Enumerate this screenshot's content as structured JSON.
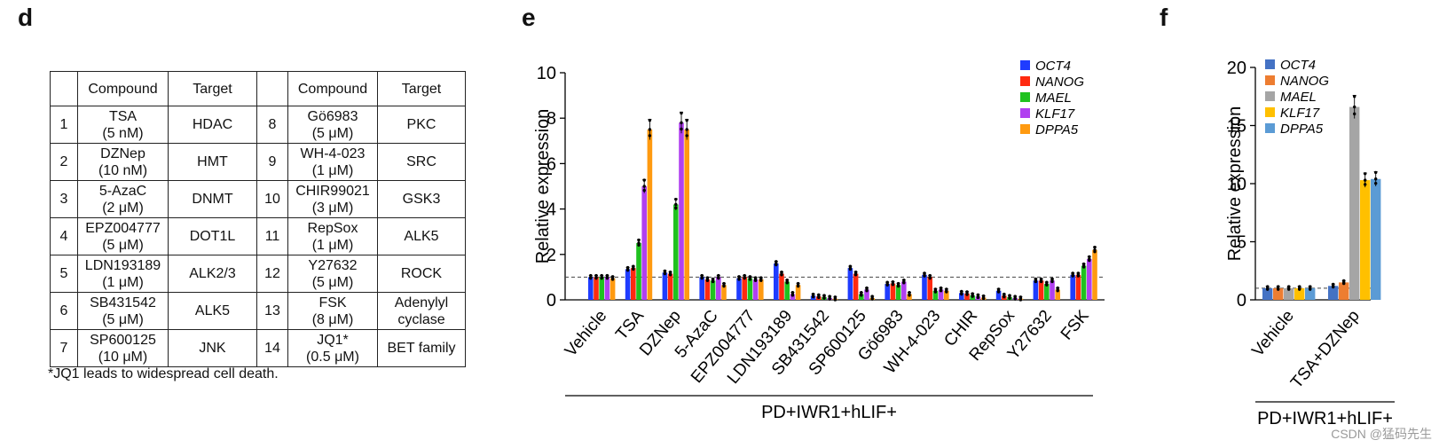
{
  "panels": {
    "d": "d",
    "e": "e",
    "f": "f"
  },
  "table": {
    "headers": [
      "",
      "Compound",
      "Target",
      "",
      "Compound",
      "Target"
    ],
    "rows": [
      {
        "n1": "1",
        "c1": [
          "TSA",
          "(5 nM)"
        ],
        "t1": "HDAC",
        "n2": "8",
        "c2": [
          "Gö6983",
          "(5 μM)"
        ],
        "t2": [
          "PKC"
        ]
      },
      {
        "n1": "2",
        "c1": [
          "DZNep",
          "(10 nM)"
        ],
        "t1": "HMT",
        "n2": "9",
        "c2": [
          "WH-4-023",
          "(1 μM)"
        ],
        "t2": [
          "SRC"
        ]
      },
      {
        "n1": "3",
        "c1": [
          "5-AzaC",
          "(2 μM)"
        ],
        "t1": "DNMT",
        "n2": "10",
        "c2": [
          "CHIR99021",
          "(3 μM)"
        ],
        "t2": [
          "GSK3"
        ]
      },
      {
        "n1": "4",
        "c1": [
          "EPZ004777",
          "(5 μM)"
        ],
        "t1": "DOT1L",
        "n2": "11",
        "c2": [
          "RepSox",
          "(1 μM)"
        ],
        "t2": [
          "ALK5"
        ]
      },
      {
        "n1": "5",
        "c1": [
          "LDN193189",
          "(1 μM)"
        ],
        "t1": "ALK2/3",
        "n2": "12",
        "c2": [
          "Y27632",
          "(5 μM)"
        ],
        "t2": [
          "ROCK"
        ]
      },
      {
        "n1": "6",
        "c1": [
          "SB431542",
          "(5 μM)"
        ],
        "t1": "ALK5",
        "n2": "13",
        "c2": [
          "FSK",
          "(8 μM)"
        ],
        "t2": [
          "Adenylyl",
          "cyclase"
        ]
      },
      {
        "n1": "7",
        "c1": [
          "SP600125",
          "(10 μM)"
        ],
        "t1": "JNK",
        "n2": "14",
        "c2": [
          "JQ1*",
          "(0.5 μM)"
        ],
        "t2": [
          "BET family"
        ]
      }
    ],
    "note": "*JQ1 leads to widespread cell death."
  },
  "chart_data": [
    {
      "panel": "e",
      "type": "bar",
      "ylabel": "Relative expression",
      "xlabel": "",
      "group_label": "PD+IWR1+hLIF+",
      "ylim": [
        0,
        10
      ],
      "yticks": [
        0,
        2,
        4,
        6,
        8,
        10
      ],
      "reference_line": 1,
      "legend_position": "top-right",
      "categories": [
        "Vehicle",
        "TSA",
        "DZNep",
        "5-AzaC",
        "EPZ004777",
        "LDN193189",
        "SB431542",
        "SP600125",
        "Gö6983",
        "WH-4-023",
        "CHIR",
        "RepSox",
        "Y27632",
        "FSK"
      ],
      "series": [
        {
          "name": "OCT4",
          "color": "#1f3cff",
          "values": [
            1.0,
            1.35,
            1.2,
            1.0,
            0.95,
            1.6,
            0.18,
            1.4,
            0.7,
            1.1,
            0.3,
            0.4,
            0.85,
            1.1
          ]
        },
        {
          "name": "NANOG",
          "color": "#ff2a10",
          "values": [
            1.0,
            1.4,
            1.15,
            0.9,
            1.0,
            1.15,
            0.15,
            1.15,
            0.72,
            1.0,
            0.28,
            0.18,
            0.85,
            1.1
          ]
        },
        {
          "name": "MAEL",
          "color": "#1fc21f",
          "values": [
            1.0,
            2.5,
            4.2,
            0.85,
            0.95,
            0.8,
            0.12,
            0.25,
            0.65,
            0.4,
            0.2,
            0.12,
            0.7,
            1.5
          ]
        },
        {
          "name": "KLF17",
          "color": "#b040f0",
          "values": [
            1.0,
            5.0,
            7.8,
            1.0,
            0.9,
            0.25,
            0.08,
            0.45,
            0.8,
            0.45,
            0.15,
            0.08,
            0.85,
            1.8
          ]
        },
        {
          "name": "DPPA5",
          "color": "#ff9a10",
          "values": [
            0.95,
            7.5,
            7.5,
            0.65,
            0.9,
            0.65,
            0.05,
            0.08,
            0.25,
            0.4,
            0.1,
            0.05,
            0.45,
            2.2
          ]
        }
      ]
    },
    {
      "panel": "f",
      "type": "bar",
      "ylabel": "Relative expression",
      "xlabel": "",
      "group_label": "PD+IWR1+hLIF+",
      "ylim": [
        0,
        20
      ],
      "yticks": [
        0,
        5,
        10,
        15,
        20
      ],
      "reference_line": 1,
      "legend_position": "top-left",
      "categories": [
        "Vehicle",
        "TSA+DZNep"
      ],
      "series": [
        {
          "name": "OCT4",
          "color": "#4472c4",
          "values": [
            1.0,
            1.2
          ]
        },
        {
          "name": "NANOG",
          "color": "#ed7d31",
          "values": [
            1.0,
            1.5
          ]
        },
        {
          "name": "MAEL",
          "color": "#a5a5a5",
          "values": [
            1.0,
            16.6
          ]
        },
        {
          "name": "KLF17",
          "color": "#ffc000",
          "values": [
            1.0,
            10.3
          ]
        },
        {
          "name": "DPPA5",
          "color": "#5b9bd5",
          "values": [
            1.0,
            10.4
          ]
        }
      ]
    }
  ],
  "watermark": "CSDN @猛码先生"
}
